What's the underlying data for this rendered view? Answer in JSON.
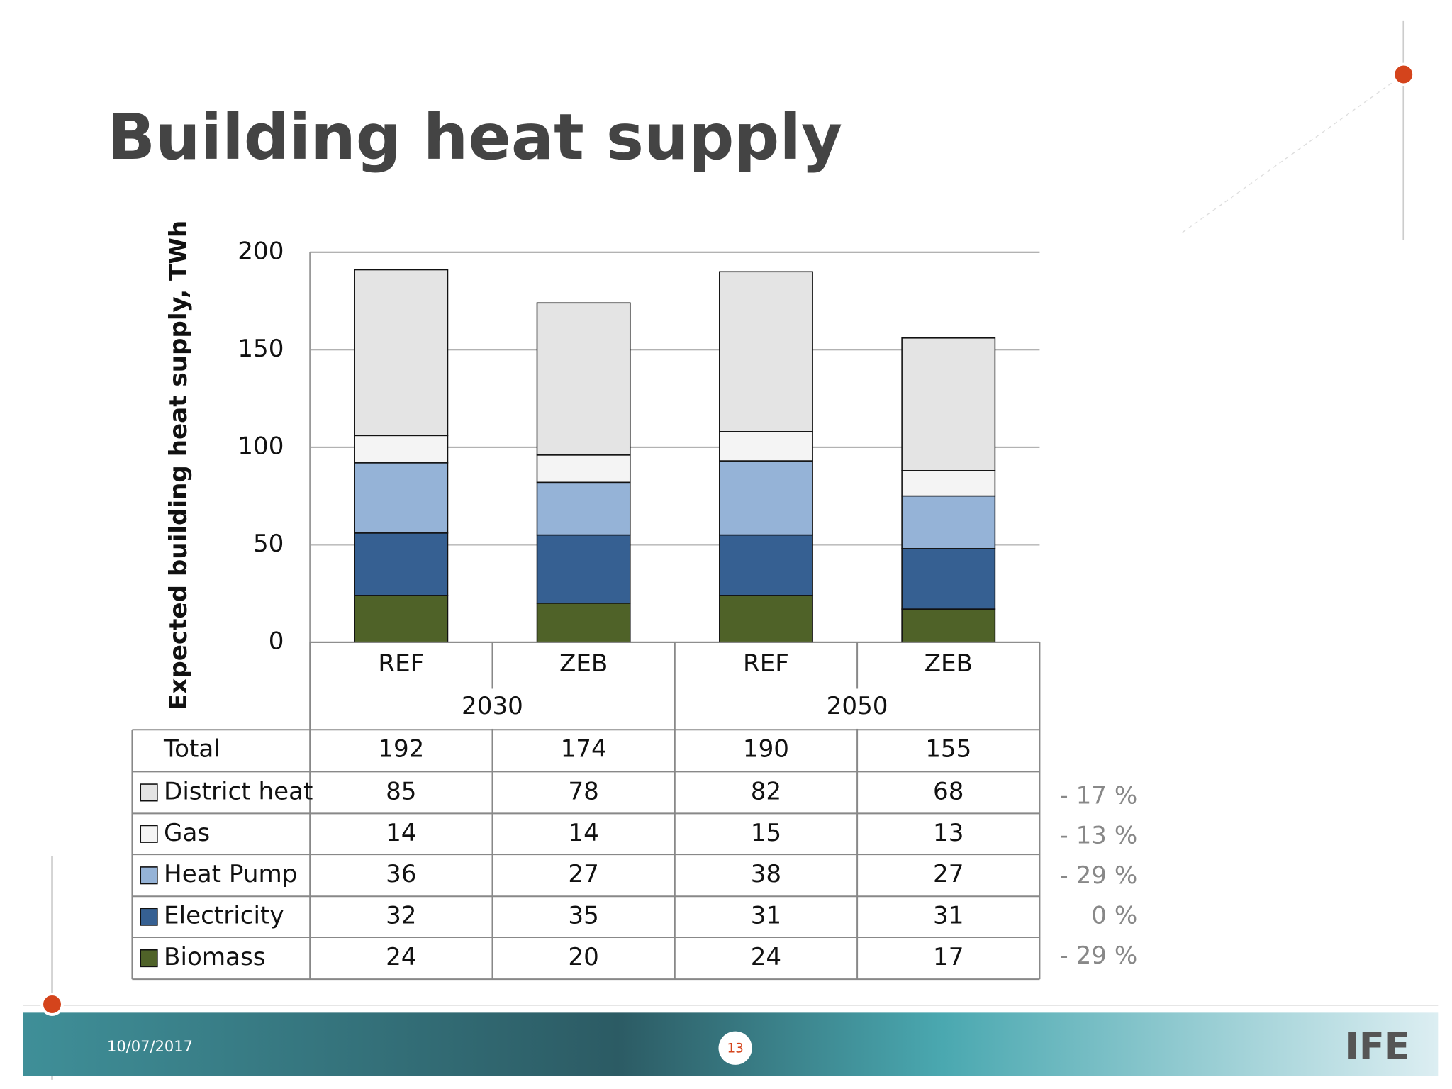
{
  "chart_data": {
    "type": "bar",
    "stacked": true,
    "title": "Building heat supply",
    "ylabel": "Expected building heat supply, TWh",
    "categories": [
      "REF",
      "ZEB",
      "REF",
      "ZEB"
    ],
    "groups": [
      "2030",
      "2050"
    ],
    "ylim": [
      0,
      200
    ],
    "yticks": [
      0,
      50,
      100,
      150,
      200
    ],
    "grid": true,
    "series": [
      {
        "name": "District heat",
        "color": "#e4e4e4",
        "values": [
          85,
          78,
          82,
          68
        ]
      },
      {
        "name": "Gas",
        "color": "#f4f4f4",
        "values": [
          14,
          14,
          15,
          13
        ]
      },
      {
        "name": "Heat Pump",
        "color": "#95b3d7",
        "values": [
          36,
          27,
          38,
          27
        ]
      },
      {
        "name": "Electricity",
        "color": "#366092",
        "values": [
          32,
          35,
          31,
          31
        ]
      },
      {
        "name": "Biomass",
        "color": "#4f6228",
        "values": [
          24,
          20,
          24,
          17
        ]
      }
    ],
    "total_label": "Total",
    "totals": [
      192,
      174,
      190,
      155
    ],
    "change_labels": [
      "- 17 %",
      "- 13 %",
      "- 29 %",
      "0 %",
      "- 29 %"
    ]
  },
  "footer": {
    "date": "10/07/2017",
    "page_number": "13",
    "logo": "IFE"
  }
}
